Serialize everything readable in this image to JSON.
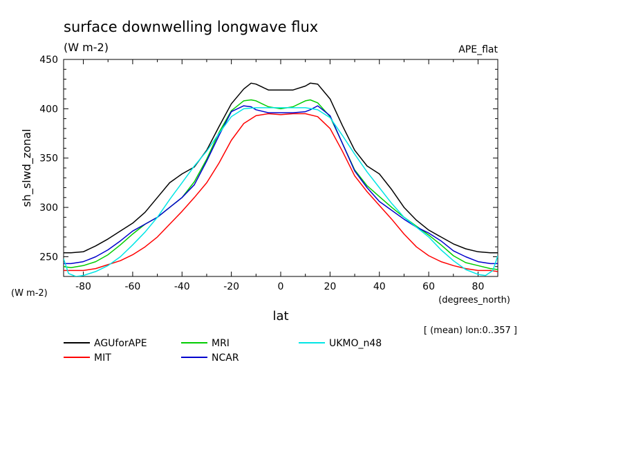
{
  "chart_data": {
    "type": "line",
    "title": "surface downwelling longwave flux",
    "title_units": "(W m-2)",
    "experiment": "APE_flat",
    "ylabel": "sh_slwd_zonal",
    "y_units": "(W m-2)",
    "xlabel": "lat",
    "x_units": "(degrees_north)",
    "subset_note": "[ (mean) lon:0..357 ]",
    "xlim": [
      -88,
      88
    ],
    "ylim": [
      230,
      450
    ],
    "x_ticks": [
      -80,
      -60,
      -40,
      -20,
      0,
      20,
      40,
      60,
      80
    ],
    "y_ticks": [
      250,
      300,
      350,
      400,
      450
    ],
    "grid": false,
    "legend_position": "below",
    "series": [
      {
        "name": "AGUforAPE",
        "color": "#000000",
        "x": [
          -88,
          -85,
          -80,
          -75,
          -70,
          -65,
          -60,
          -55,
          -50,
          -45,
          -40,
          -35,
          -30,
          -25,
          -20,
          -15,
          -12,
          -10,
          -5,
          0,
          5,
          10,
          12,
          15,
          20,
          25,
          30,
          35,
          40,
          45,
          50,
          55,
          60,
          65,
          70,
          75,
          80,
          85,
          88
        ],
        "y": [
          254,
          254,
          255,
          261,
          268,
          276,
          284,
          295,
          310,
          325,
          334,
          341,
          358,
          382,
          405,
          420,
          426,
          425,
          419,
          419,
          419,
          423,
          426,
          425,
          410,
          383,
          358,
          342,
          334,
          318,
          300,
          287,
          277,
          270,
          263,
          258,
          255,
          254,
          254
        ]
      },
      {
        "name": "MIT",
        "color": "#ff0000",
        "x": [
          -88,
          -85,
          -80,
          -75,
          -70,
          -65,
          -60,
          -55,
          -50,
          -45,
          -40,
          -35,
          -30,
          -25,
          -20,
          -15,
          -10,
          -5,
          0,
          5,
          10,
          15,
          20,
          25,
          30,
          35,
          40,
          45,
          50,
          55,
          60,
          65,
          70,
          75,
          80,
          85,
          88
        ],
        "y": [
          236,
          236,
          236,
          238,
          242,
          246,
          252,
          260,
          270,
          283,
          296,
          310,
          325,
          345,
          368,
          385,
          393,
          395,
          394,
          395,
          395,
          392,
          380,
          357,
          332,
          316,
          302,
          288,
          273,
          260,
          251,
          245,
          241,
          238,
          236,
          236,
          235
        ]
      },
      {
        "name": "MRI",
        "color": "#00cc00",
        "x": [
          -88,
          -85,
          -80,
          -75,
          -70,
          -65,
          -60,
          -55,
          -50,
          -45,
          -40,
          -35,
          -30,
          -25,
          -20,
          -15,
          -12,
          -10,
          -5,
          0,
          5,
          10,
          12,
          15,
          20,
          25,
          30,
          35,
          40,
          45,
          50,
          55,
          60,
          65,
          70,
          75,
          80,
          85,
          88
        ],
        "y": [
          240,
          239,
          241,
          245,
          252,
          262,
          273,
          283,
          290,
          300,
          310,
          326,
          349,
          376,
          398,
          408,
          409,
          408,
          402,
          400,
          402,
          408,
          409,
          406,
          392,
          365,
          338,
          322,
          311,
          300,
          290,
          281,
          272,
          262,
          251,
          244,
          241,
          238,
          237
        ]
      },
      {
        "name": "NCAR",
        "color": "#0000cc",
        "x": [
          -88,
          -85,
          -80,
          -75,
          -70,
          -65,
          -60,
          -55,
          -50,
          -45,
          -40,
          -35,
          -30,
          -25,
          -20,
          -15,
          -12,
          -10,
          -5,
          0,
          5,
          10,
          12,
          15,
          20,
          25,
          30,
          35,
          40,
          45,
          50,
          55,
          60,
          65,
          70,
          75,
          80,
          85,
          88
        ],
        "y": [
          243,
          243,
          245,
          250,
          257,
          266,
          276,
          283,
          290,
          300,
          310,
          323,
          347,
          373,
          397,
          403,
          402,
          399,
          396,
          396,
          396,
          397,
          399,
          403,
          393,
          365,
          337,
          320,
          306,
          297,
          288,
          280,
          274,
          266,
          256,
          250,
          245,
          243,
          243
        ]
      },
      {
        "name": "UKMO_n48",
        "color": "#00e5e5",
        "x": [
          -88,
          -86,
          -83,
          -80,
          -75,
          -70,
          -65,
          -60,
          -55,
          -50,
          -45,
          -40,
          -35,
          -30,
          -25,
          -20,
          -15,
          -10,
          -5,
          0,
          5,
          10,
          15,
          20,
          25,
          30,
          35,
          40,
          45,
          50,
          55,
          60,
          65,
          70,
          75,
          80,
          83,
          86,
          88
        ],
        "y": [
          248,
          233,
          230,
          231,
          235,
          241,
          250,
          262,
          275,
          290,
          308,
          325,
          342,
          357,
          375,
          392,
          400,
          401,
          401,
          401,
          401,
          401,
          399,
          391,
          373,
          354,
          336,
          320,
          304,
          290,
          280,
          270,
          257,
          246,
          237,
          232,
          231,
          236,
          251
        ]
      }
    ]
  }
}
